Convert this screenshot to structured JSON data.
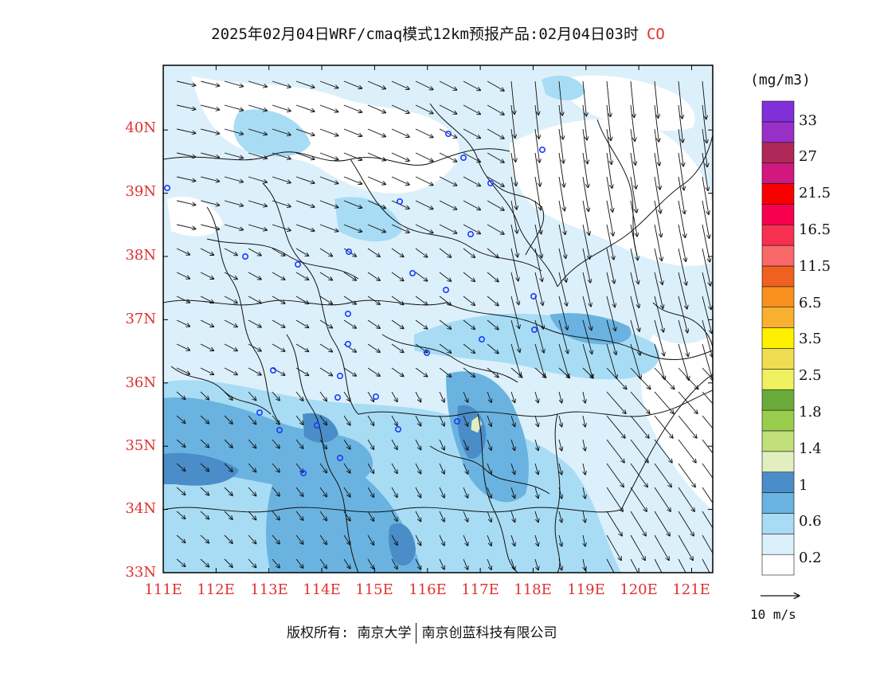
{
  "title": {
    "main": "2025年02月04日WRF/cmaq模式12km预报产品:02月04日03时",
    "species": "CO"
  },
  "axes": {
    "lat_labels": [
      "40N",
      "39N",
      "38N",
      "37N",
      "36N",
      "35N",
      "34N",
      "33N"
    ],
    "lon_labels": [
      "111E",
      "112E",
      "113E",
      "114E",
      "115E",
      "116E",
      "117E",
      "118E",
      "119E",
      "120E",
      "121E"
    ],
    "lat_range": [
      33,
      41
    ],
    "lon_range": [
      111,
      121.4
    ]
  },
  "colorbar": {
    "unit": "(mg/m3)",
    "labels": [
      "33",
      "27",
      "21.5",
      "16.5",
      "11.5",
      "6.5",
      "3.5",
      "2.5",
      "1.8",
      "1.4",
      "1",
      "0.6",
      "0.2"
    ],
    "colors_bottom_to_top": [
      "#ffffff",
      "#dcf0fb",
      "#a8dcf5",
      "#6ab3e0",
      "#4a8dc8",
      "#e0eec0",
      "#c2e07a",
      "#9acd4e",
      "#6aaa3a",
      "#f0f060",
      "#f0dc50",
      "#fff000",
      "#f8b030",
      "#f89020",
      "#f06020",
      "#f86868",
      "#f83050",
      "#f80050",
      "#f80000",
      "#d01880",
      "#b02858",
      "#9830c8",
      "#8030d8"
    ]
  },
  "wind_reference": {
    "label": "10 m/s"
  },
  "footer": {
    "left": "版权所有: 南京大学",
    "right": "南京创蓝科技有限公司"
  },
  "colors": {
    "frame": "#000000",
    "label_red": "#e03030",
    "station_marker": "#1a3cff"
  }
}
